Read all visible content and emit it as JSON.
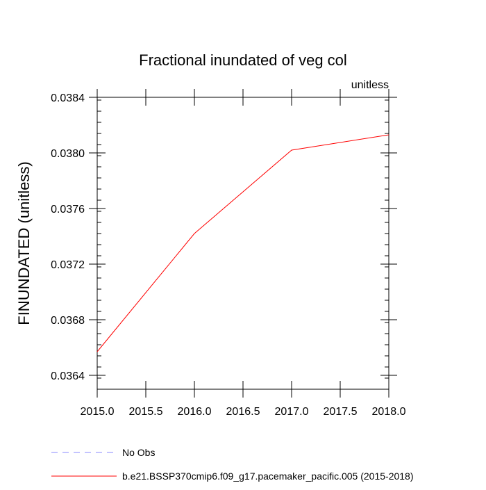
{
  "chart_data": {
    "type": "line",
    "title": "Fractional inundated of veg col",
    "units_label": "unitless",
    "ylabel": "FINUNDATED  (unitless)",
    "xlabel": "",
    "xlim": [
      2015.0,
      2018.0
    ],
    "ylim": [
      0.0363,
      0.0384
    ],
    "x_ticks": [
      {
        "value": 2015.0,
        "label": "2015.0"
      },
      {
        "value": 2015.5,
        "label": "2015.5"
      },
      {
        "value": 2016.0,
        "label": "2016.0"
      },
      {
        "value": 2016.5,
        "label": "2016.5"
      },
      {
        "value": 2017.0,
        "label": "2017.0"
      },
      {
        "value": 2017.5,
        "label": "2017.5"
      },
      {
        "value": 2018.0,
        "label": "2018.0"
      }
    ],
    "y_ticks": [
      {
        "value": 0.0364,
        "label": "0.0364"
      },
      {
        "value": 0.0368,
        "label": "0.0368"
      },
      {
        "value": 0.0372,
        "label": "0.0372"
      },
      {
        "value": 0.0376,
        "label": "0.0376"
      },
      {
        "value": 0.038,
        "label": "0.0380"
      },
      {
        "value": 0.0384,
        "label": "0.0384"
      }
    ],
    "series": [
      {
        "name": "b.e21.BSSP370cmip6.f09_g17.pacemaker_pacific.005 (2015-2018)",
        "color": "#ff0000",
        "dash": "solid",
        "x": [
          2015.0,
          2016.0,
          2017.0,
          2018.0
        ],
        "y": [
          0.03657,
          0.03742,
          0.03802,
          0.03813
        ]
      }
    ],
    "legend": [
      {
        "label": "No Obs",
        "color": "#8a8aff",
        "dash": "dashed"
      },
      {
        "label": "b.e21.BSSP370cmip6.f09_g17.pacemaker_pacific.005 (2015-2018)",
        "color": "#ff0000",
        "dash": "solid"
      }
    ],
    "legend_position": "bottom",
    "grid": false
  }
}
